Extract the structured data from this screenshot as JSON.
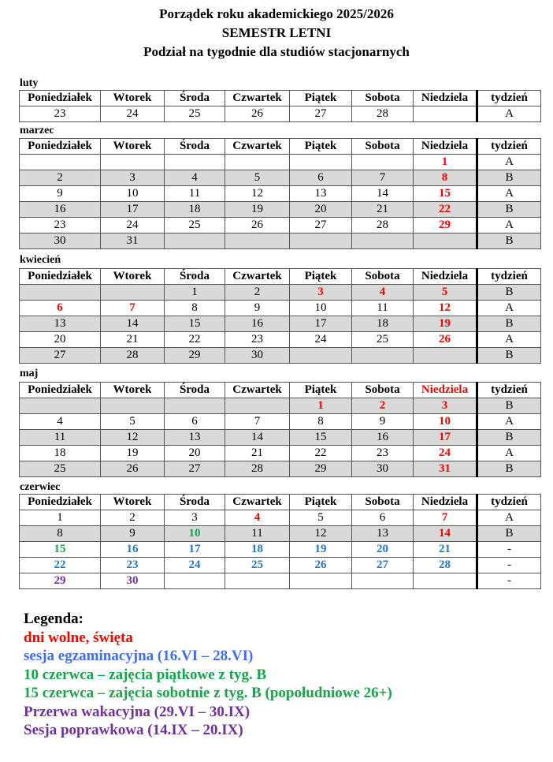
{
  "header": {
    "line1": "Porządek roku akademickiego 2025/2026",
    "line2": "SEMESTR LETNI",
    "line3": "Podział na tygodnie dla studiów stacjonarnych"
  },
  "columns": [
    "Poniedziałek",
    "Wtorek",
    "Środa",
    "Czwartek",
    "Piątek",
    "Sobota",
    "Niedziela",
    "tydzień"
  ],
  "colors": {
    "red": "#ff0000",
    "blue": "#1f78c8",
    "green": "#15a54a",
    "purple": "#7030a0",
    "legend_blue": "#3d6ff0",
    "gray_row": "#d9d9d9"
  },
  "months": [
    {
      "name": "luty",
      "rows": [
        {
          "w": "A",
          "d": [
            "23",
            "24",
            "25",
            "26",
            "27",
            "28",
            ""
          ]
        }
      ]
    },
    {
      "name": "marzec",
      "rows": [
        {
          "w": "A",
          "d": [
            "",
            "",
            "",
            "",
            "",
            "",
            "1"
          ],
          "c": {
            "6": "red"
          }
        },
        {
          "w": "B",
          "d": [
            "2",
            "3",
            "4",
            "5",
            "6",
            "7",
            "8"
          ],
          "c": {
            "6": "red"
          }
        },
        {
          "w": "A",
          "d": [
            "9",
            "10",
            "11",
            "12",
            "13",
            "14",
            "15"
          ],
          "c": {
            "6": "red"
          }
        },
        {
          "w": "B",
          "d": [
            "16",
            "17",
            "18",
            "19",
            "20",
            "21",
            "22"
          ],
          "c": {
            "6": "red"
          }
        },
        {
          "w": "A",
          "d": [
            "23",
            "24",
            "25",
            "26",
            "27",
            "28",
            "29"
          ],
          "c": {
            "6": "red"
          }
        },
        {
          "w": "B",
          "d": [
            "30",
            "31",
            "",
            "",
            "",
            "",
            ""
          ]
        }
      ]
    },
    {
      "name": "kwiecień",
      "rows": [
        {
          "w": "B",
          "d": [
            "",
            "",
            "1",
            "2",
            "3",
            "4",
            "5"
          ],
          "c": {
            "4": "red",
            "5": "red",
            "6": "red"
          }
        },
        {
          "w": "A",
          "d": [
            "6",
            "7",
            "8",
            "9",
            "10",
            "11",
            "12"
          ],
          "c": {
            "0": "red",
            "1": "red",
            "6": "red"
          }
        },
        {
          "w": "B",
          "d": [
            "13",
            "14",
            "15",
            "16",
            "17",
            "18",
            "19"
          ],
          "c": {
            "6": "red"
          }
        },
        {
          "w": "A",
          "d": [
            "20",
            "21",
            "22",
            "23",
            "24",
            "25",
            "26"
          ],
          "c": {
            "6": "red"
          }
        },
        {
          "w": "B",
          "d": [
            "27",
            "28",
            "29",
            "30",
            "",
            "",
            ""
          ]
        }
      ]
    },
    {
      "name": "maj",
      "redHeader": 6,
      "rows": [
        {
          "w": "B",
          "d": [
            "",
            "",
            "",
            "",
            "1",
            "2",
            "3"
          ],
          "c": {
            "4": "red",
            "5": "red",
            "6": "red"
          }
        },
        {
          "w": "A",
          "d": [
            "4",
            "5",
            "6",
            "7",
            "8",
            "9",
            "10"
          ],
          "c": {
            "6": "red"
          }
        },
        {
          "w": "B",
          "d": [
            "11",
            "12",
            "13",
            "14",
            "15",
            "16",
            "17"
          ],
          "c": {
            "6": "red"
          }
        },
        {
          "w": "A",
          "d": [
            "18",
            "19",
            "20",
            "21",
            "22",
            "23",
            "24"
          ],
          "c": {
            "6": "red"
          }
        },
        {
          "w": "B",
          "d": [
            "25",
            "26",
            "27",
            "28",
            "29",
            "30",
            "31"
          ],
          "c": {
            "6": "red"
          }
        }
      ]
    },
    {
      "name": "czerwiec",
      "rows": [
        {
          "w": "A",
          "d": [
            "1",
            "2",
            "3",
            "4",
            "5",
            "6",
            "7"
          ],
          "c": {
            "3": "red",
            "6": "red"
          }
        },
        {
          "w": "B",
          "d": [
            "8",
            "9",
            "10",
            "11",
            "12",
            "13",
            "14"
          ],
          "c": {
            "2": "green",
            "6": "red"
          }
        },
        {
          "w": "-",
          "d": [
            "15",
            "16",
            "17",
            "18",
            "19",
            "20",
            "21"
          ],
          "c": {
            "0": "green",
            "1": "blue",
            "2": "blue",
            "3": "blue",
            "4": "blue",
            "5": "blue",
            "6": "blue"
          }
        },
        {
          "w": "-",
          "d": [
            "22",
            "23",
            "24",
            "25",
            "26",
            "27",
            "28"
          ],
          "c": {
            "0": "blue",
            "1": "blue",
            "2": "blue",
            "3": "blue",
            "4": "blue",
            "5": "blue",
            "6": "blue"
          }
        },
        {
          "w": "-",
          "d": [
            "29",
            "30",
            "",
            "",
            "",
            "",
            ""
          ],
          "c": {
            "0": "purple",
            "1": "purple"
          }
        }
      ]
    }
  ],
  "legend": {
    "title": "Legenda:",
    "items": [
      {
        "text": "dni wolne, święta",
        "color": "#ff0000"
      },
      {
        "text": "sesja egzaminacyjna (16.VI – 28.VI)",
        "color": "#3d6ff0"
      },
      {
        "text": "10 czerwca – zajęcia piątkowe z tyg. B",
        "color": "#15a54a"
      },
      {
        "text": "15 czerwca – zajęcia sobotnie z tyg. B (popołudniowe 26+)",
        "color": "#15a54a"
      },
      {
        "text": "Przerwa wakacyjna (29.VI – 30.IX)",
        "color": "#7030a0"
      },
      {
        "text": "Sesja poprawkowa (14.IX – 20.IX)",
        "color": "#7030a0"
      }
    ]
  }
}
